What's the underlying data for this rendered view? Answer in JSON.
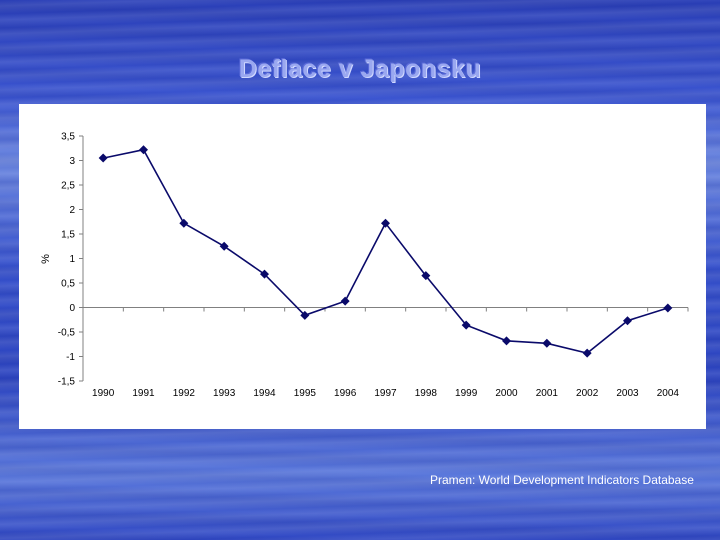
{
  "slide": {
    "title": "Deflace v Japonsku",
    "source": "Pramen: World Development Indicators Database"
  },
  "colors": {
    "series": "#0a0a6a",
    "background": "#2c44c0"
  },
  "chart_data": {
    "type": "line",
    "title": "",
    "xlabel": "",
    "ylabel": "%",
    "x": [
      "1990",
      "1991",
      "1992",
      "1993",
      "1994",
      "1995",
      "1996",
      "1997",
      "1998",
      "1999",
      "2000",
      "2001",
      "2002",
      "2003",
      "2004"
    ],
    "series": [
      {
        "values": [
          3.05,
          3.22,
          1.72,
          1.25,
          0.68,
          -0.16,
          0.13,
          1.72,
          0.65,
          -0.36,
          -0.68,
          -0.73,
          -0.93,
          -0.27,
          -0.01
        ]
      }
    ],
    "ylim": [
      -1.5,
      3.5
    ],
    "yticks": [
      3.5,
      3,
      2.5,
      2,
      1.5,
      1,
      0.5,
      0,
      -0.5,
      -1,
      -1.5
    ],
    "ytick_labels": [
      "3,5",
      "3",
      "2,5",
      "2",
      "1,5",
      "1",
      "0,5",
      "0",
      "-0,5",
      "-1",
      "-1,5"
    ],
    "marker": "diamond",
    "grid": false
  }
}
